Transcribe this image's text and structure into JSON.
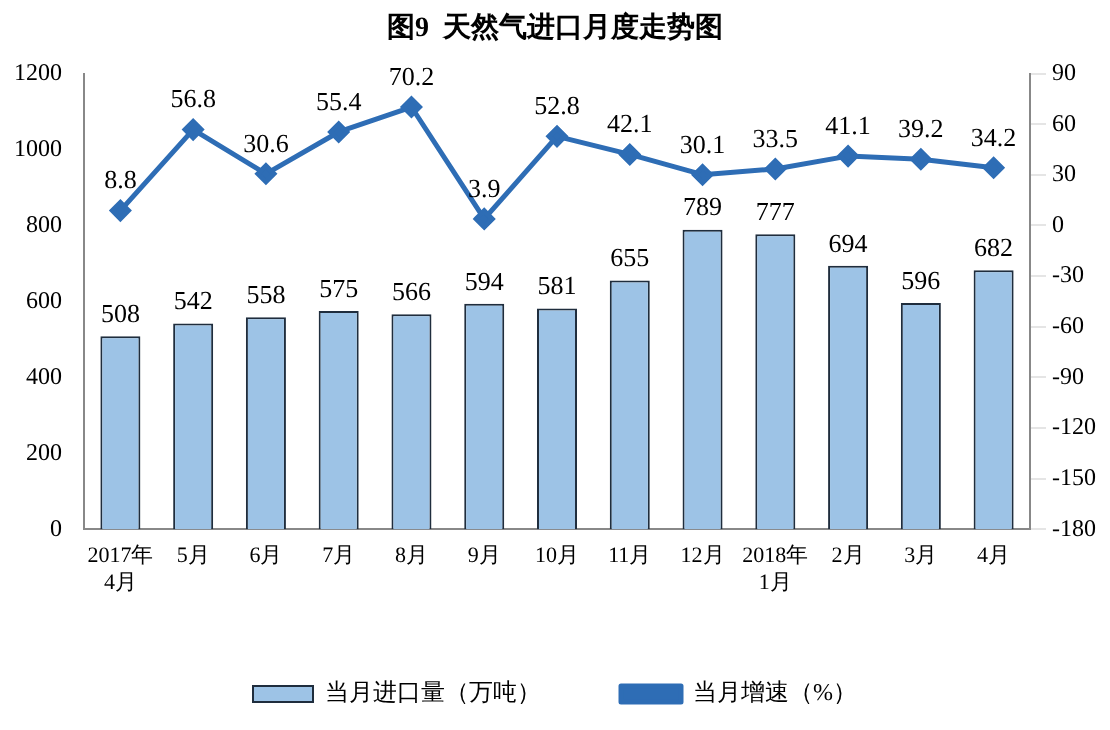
{
  "chart_data": {
    "type": "bar",
    "title": "图9  天然气进口月度走势图",
    "categories": [
      "2017年4月",
      "5月",
      "6月",
      "7月",
      "8月",
      "9月",
      "10月",
      "11月",
      "12月",
      "2018年1月",
      "2月",
      "3月",
      "4月"
    ],
    "series": [
      {
        "name": "当月进口量（万吨）",
        "color": "#9dc3e6",
        "values": [
          508,
          542,
          558,
          575,
          566,
          594,
          581,
          655,
          789,
          777,
          694,
          596,
          682
        ]
      },
      {
        "name": "当月增速（%）",
        "type": "line",
        "axis": "y2",
        "color": "#2e6db5",
        "values": [
          8.8,
          56.8,
          30.6,
          55.4,
          70.2,
          3.9,
          52.8,
          42.1,
          30.1,
          33.5,
          41.1,
          39.2,
          34.2
        ]
      }
    ],
    "ylim": [
      0,
      1200
    ],
    "yticks": [
      0,
      200,
      400,
      600,
      800,
      1000,
      1200
    ],
    "y2lim": [
      -180,
      90
    ],
    "y2ticks": [
      -180,
      -150,
      -120,
      -90,
      -60,
      -30,
      0,
      30,
      60,
      90
    ],
    "data_labels": true,
    "legend": "bottom",
    "grid": false,
    "marker": "diamond",
    "line_style": "solid"
  }
}
